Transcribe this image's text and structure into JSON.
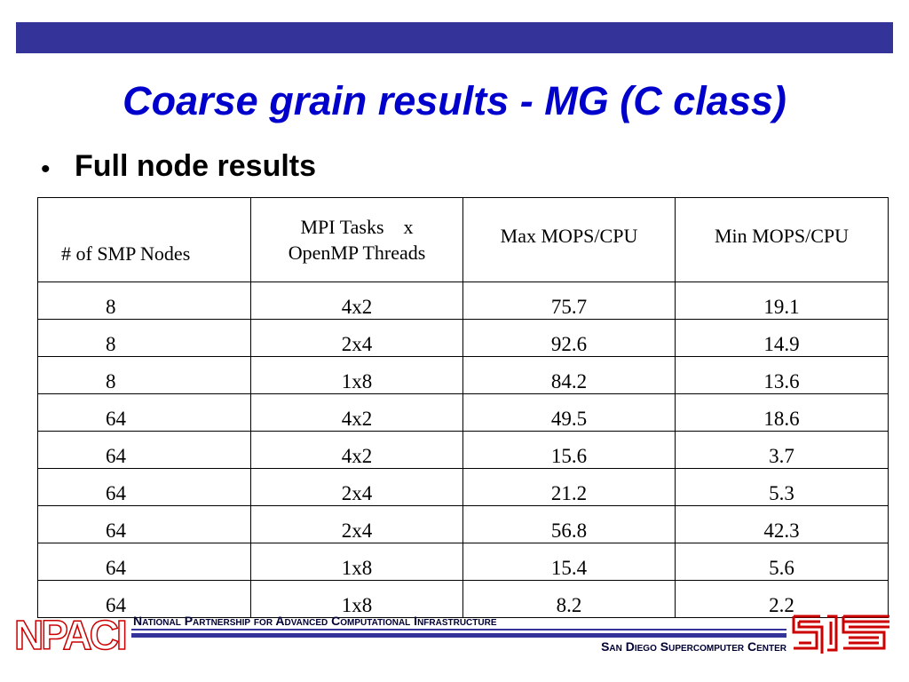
{
  "title": "Coarse grain results - MG (C class)",
  "bullet": "Full node results",
  "table": {
    "header": [
      [
        "# of SMP Nodes"
      ],
      [
        "MPI Tasks    x",
        "OpenMP Threads"
      ],
      [
        "Max MOPS/CPU"
      ],
      [
        "Min MOPS/CPU"
      ]
    ],
    "rows": [
      [
        "8",
        "4x2",
        "75.7",
        "19.1"
      ],
      [
        "8",
        "2x4",
        "92.6",
        "14.9"
      ],
      [
        "8",
        "1x8",
        "84.2",
        "13.6"
      ],
      [
        "64",
        "4x2",
        "49.5",
        "18.6"
      ],
      [
        "64",
        "4x2",
        "15.6",
        "3.7"
      ],
      [
        "64",
        "2x4",
        "21.2",
        "5.3"
      ],
      [
        "64",
        "2x4",
        "56.8",
        "42.3"
      ],
      [
        "64",
        "1x8",
        "15.4",
        "5.6"
      ],
      [
        "64",
        "1x8",
        "8.2",
        "2.2"
      ]
    ]
  },
  "footer": {
    "logo_left": "NPACI",
    "partnership": "National Partnership for Advanced Computational Infrastructure",
    "center": "San Diego Supercomputer Center"
  }
}
